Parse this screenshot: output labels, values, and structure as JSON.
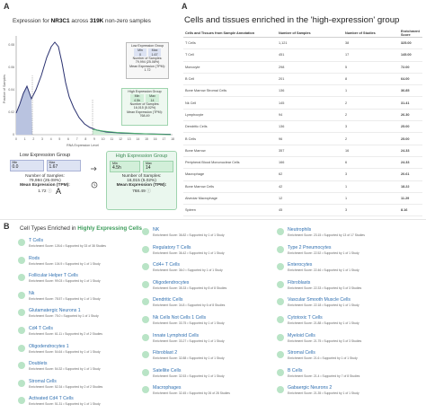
{
  "panel_a_letter": "A",
  "panel_b_letter": "B",
  "hist": {
    "title_pre": "Expression for ",
    "gene": "NR3C1",
    "title_mid": " across ",
    "count": "319K",
    "title_post": " non-zero samples",
    "ylabel": "Fraction of Samples",
    "xlabel": "RNA Expression Level",
    "xticks": [
      "0",
      "1",
      "2",
      "3",
      "4",
      "5",
      "6",
      "7",
      "8",
      "9",
      "10",
      "11",
      "12",
      "13",
      "14",
      "15",
      "16",
      "17",
      "18"
    ],
    "yticks": [
      "0.08",
      "0.06",
      "0.04",
      "0.02",
      "0"
    ]
  },
  "low_group": {
    "title": "Low Expression Group",
    "min_label": "Min",
    "min_value": "0.0",
    "max_label": "Max",
    "max_value": "1.67",
    "samples_label": "Number of Samples:",
    "samples_value": "79,994 (25.08%)",
    "mean_label": "Mean Expression (TPM):",
    "mean_value": "1.72"
  },
  "high_group": {
    "title": "High Expression Group",
    "min_label": "Min",
    "min_value": "4.5h",
    "max_label": "Max",
    "max_value": "14",
    "samples_label": "Number of Samples:",
    "samples_value": "16,015 (5.02%)",
    "mean_label": "Mean Expression (TPM):",
    "mean_value": "768.49"
  },
  "mini_low": {
    "title": "Low Expression Group",
    "min_label": "Min",
    "min_value": "0",
    "max_label": "Max",
    "max_value": "1.67",
    "samples_label": "Number of Samples:",
    "samples_value": "79,994 (25.08%)",
    "mean_label": "Mean Expression (TPM):",
    "mean_value": "1.72"
  },
  "mini_high": {
    "title": "High Expression Group",
    "min_label": "Min",
    "min_value": "4.5h",
    "max_label": "Max",
    "max_value": "14",
    "samples_label": "Number of Samples:",
    "samples_value": "16,015 (5.02%)",
    "mean_label": "Mean Expression (TPM):",
    "mean_value": "768.49"
  },
  "cells_table": {
    "title": "Cells and tissues enriched in the 'high-expression' group",
    "headers": [
      "Cells and Tissues from Sample Annotation",
      "Number of Samples",
      "Number of Studies",
      "Enrichment Score"
    ],
    "rows": [
      [
        "T Cells",
        "1,121",
        "38",
        "325.00"
      ],
      [
        "T Cell",
        "451",
        "17",
        "145.00"
      ],
      [
        "Monocyte",
        "298",
        "5",
        "72.00"
      ],
      [
        "B Cell",
        "201",
        "8",
        "64.00"
      ],
      [
        "Bone Marrow Stromal Cells",
        "136",
        "1",
        "36.85"
      ],
      [
        "Nk Cell",
        "145",
        "2",
        "31.41"
      ],
      [
        "Lymphocyte",
        "94",
        "2",
        "26.30"
      ],
      [
        "Dendritic Cells",
        "136",
        "3",
        "25.00"
      ],
      [
        "B Cells",
        "96",
        "2",
        "25.00"
      ],
      [
        "Bone Marrow",
        "357",
        "16",
        "24.33"
      ],
      [
        "Peripheral Blood Mononuclear Cells",
        "166",
        "6",
        "24.33"
      ],
      [
        "Macrophage",
        "62",
        "3",
        "20.61"
      ],
      [
        "Bone Marrow Cells",
        "42",
        "1",
        "18.22"
      ],
      [
        "Alveolar Macrophage",
        "12",
        "1",
        "11.29"
      ],
      [
        "Spleen",
        "45",
        "3",
        "8.16"
      ]
    ]
  },
  "cell_types": {
    "title_pre": "Cell Types Enriched in ",
    "title_highlight": "Highly Expressing Cells",
    "columns": [
      [
        {
          "name": "T Cells",
          "sub": "Enrichment Score: 126.6 • Supported by 33 of 38 Studies"
        },
        {
          "name": "Rods",
          "sub": "Enrichment Score: 104.9 • Supported by 1 of 1 Study"
        },
        {
          "name": "Follicular Helper T Cells",
          "sub": "Enrichment Score: 99.03 • Supported by 1 of 1 Study"
        },
        {
          "name": "Nk",
          "sub": "Enrichment Score: 78.57 • Supported by 1 of 1 Study"
        },
        {
          "name": "Glutamatergic Neurons 1",
          "sub": "Enrichment Score: 75.0 • Supported by 1 of 1 Study"
        },
        {
          "name": "Cd4 T Cells",
          "sub": "Enrichment Score: 61.11 • Supported by 2 of 2 Studies"
        },
        {
          "name": "Oligodendrocytes 1",
          "sub": "Enrichment Score: 54.64 • Supported by 1 of 1 Study"
        },
        {
          "name": "Doublets",
          "sub": "Enrichment Score: 54.32 • Supported by 1 of 1 Study"
        },
        {
          "name": "Stromal Cells",
          "sub": "Enrichment Score: 52.34 • Supported by 2 of 2 Studies"
        },
        {
          "name": "Activated Cd4 T Cells",
          "sub": "Enrichment Score: 51.31 • Supported by 1 of 1 Study"
        }
      ],
      [
        {
          "name": "NK",
          "sub": "Enrichment Score: 36.82 • Supported by 1 of 1 Study"
        },
        {
          "name": "Regulatory T Cells",
          "sub": "Enrichment Score: 36.42 • Supported by 1 of 1 Study"
        },
        {
          "name": "Cd4+ T Cells",
          "sub": "Enrichment Score: 36.0 • Supported by 1 of 1 Study"
        },
        {
          "name": "Oligodendrocytes",
          "sub": "Enrichment Score: 35.33 • Supported by 8 of 8 Studies"
        },
        {
          "name": "Dendritic Cells",
          "sub": "Enrichment Score: 34.8 • Supported by 6 of 8 Studies"
        },
        {
          "name": "Nk Cells Not Cells 1 Cells",
          "sub": "Enrichment Score: 33.75 • Supported by 1 of 1 Study"
        },
        {
          "name": "Innate Lymphoid Cells",
          "sub": "Enrichment Score: 33.27 • Supported by 1 of 1 Study"
        },
        {
          "name": "Fibroblast 2",
          "sub": "Enrichment Score: 32.88 • Supported by 1 of 1 Study"
        },
        {
          "name": "Satellite Cells",
          "sub": "Enrichment Score: 32.53 • Supported by 1 of 1 Study"
        },
        {
          "name": "Macrophages",
          "sub": "Enrichment Score: 32.45 • Supported by 26 of 28 Studies"
        }
      ],
      [
        {
          "name": "Neutrophils",
          "sub": "Enrichment Score: 23.15 • Supported by 13 of 17 Studies"
        },
        {
          "name": "Type 2 Pneumocytes",
          "sub": "Enrichment Score: 22.52 • Supported by 1 of 1 Study"
        },
        {
          "name": "Enterocytes",
          "sub": "Enrichment Score: 22.46 • Supported by 1 of 1 Study"
        },
        {
          "name": "Fibroblasts",
          "sub": "Enrichment Score: 22.33 • Supported by 3 of 3 Studies"
        },
        {
          "name": "Vascular Smooth Muscle Cells",
          "sub": "Enrichment Score: 22.18 • Supported by 1 of 1 Study"
        },
        {
          "name": "Cytotoxic T Cells",
          "sub": "Enrichment Score: 21.88 • Supported by 1 of 1 Study"
        },
        {
          "name": "Myeloid Cells",
          "sub": "Enrichment Score: 21.75 • Supported by 3 of 3 Studies"
        },
        {
          "name": "Stromal Cells",
          "sub": "Enrichment Score: 21.6 • Supported by 1 of 1 Study"
        },
        {
          "name": "B Cells",
          "sub": "Enrichment Score: 21.4 • Supported by 7 of 8 Studies"
        },
        {
          "name": "Gabaergic Neurons 2",
          "sub": "Enrichment Score: 21.35 • Supported by 1 of 1 Study"
        }
      ]
    ]
  }
}
